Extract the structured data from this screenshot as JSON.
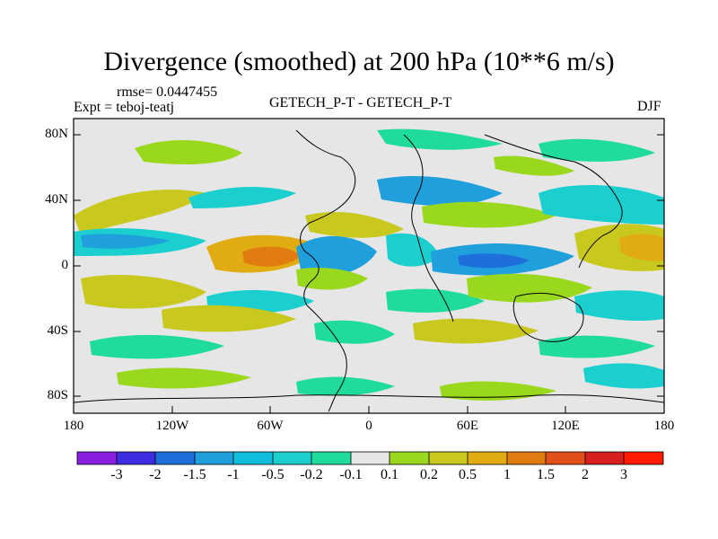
{
  "title": "Divergence (smoothed) at 200 hPa (10**6 m/s)",
  "rmse_label": "rmse= 0.0447455",
  "expt_label": "Expt = teboj-teatj",
  "center_label": "GETECH_P-T - GETECH_P-T",
  "season_label": "DJF",
  "chart_data": {
    "type": "filled-contour-map",
    "variable": "Divergence (smoothed)",
    "level": "200 hPa",
    "units": "10**6 m/s",
    "season": "DJF",
    "x_axis": {
      "range": [
        -180,
        180
      ],
      "ticks": [
        -180,
        -120,
        -60,
        0,
        60,
        120,
        180
      ],
      "tick_labels": [
        "180",
        "120W",
        "60W",
        "0",
        "60E",
        "120E",
        "180"
      ]
    },
    "y_axis": {
      "range": [
        -90,
        90
      ],
      "ticks": [
        80,
        40,
        0,
        -40,
        -80
      ],
      "tick_labels": [
        "80N",
        "40N",
        "0",
        "40S",
        "80S"
      ]
    },
    "colorbar": {
      "levels": [
        "-3",
        "-2",
        "-1.5",
        "-1",
        "-0.5",
        "-0.2",
        "-0.1",
        "0.1",
        "0.2",
        "0.5",
        "1",
        "1.5",
        "2",
        "3"
      ],
      "colors": [
        "#8a1fe0",
        "#3c2ee0",
        "#1e6fdc",
        "#1fa0dc",
        "#10bfdc",
        "#1ccfcf",
        "#1fdc9c",
        "#e6e6e6",
        "#9ad81e",
        "#c8c81e",
        "#e0ac12",
        "#e07c10",
        "#e0501a",
        "#d82020",
        "#ff1a00"
      ]
    },
    "features": [
      {
        "label": "positive",
        "lon": -75,
        "lat": 5,
        "level": 1.5
      },
      {
        "label": "negative",
        "lon": -45,
        "lat": 0,
        "level": -0.5
      },
      {
        "label": "negative",
        "lon": 60,
        "lat": 0,
        "level": -0.5
      },
      {
        "label": "positive",
        "lon": 170,
        "lat": 15,
        "level": 1
      }
    ]
  }
}
